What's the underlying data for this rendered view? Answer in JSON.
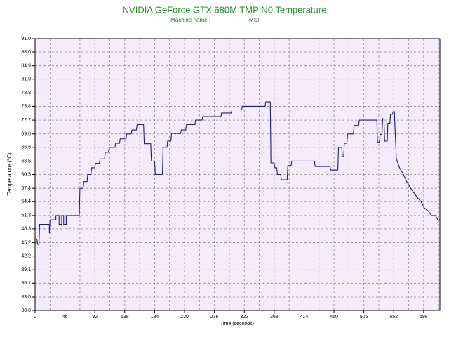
{
  "chart_data": {
    "type": "line",
    "title": "NVIDIA GeForce GTX 680M TMPIN0 Temperature",
    "machine_label": "Machine name :",
    "machine_value": "MSI",
    "xlabel": "Time (seconds)",
    "ylabel": "Temperature (°C)",
    "color": "#1c1c7a",
    "grid": true,
    "xlim": [
      0,
      623
    ],
    "ylim": [
      30,
      91
    ],
    "xticks": [
      0,
      46,
      92,
      138,
      184,
      230,
      276,
      322,
      368,
      414,
      460,
      506,
      552,
      598
    ],
    "xminorticks": [
      23,
      69,
      115,
      161,
      207,
      253,
      299,
      345,
      391,
      437,
      483,
      529,
      575,
      621
    ],
    "yticks": [
      {
        "value": 30,
        "label": "30.0"
      },
      {
        "value": 33,
        "label": "33.0"
      },
      36.1,
      39.1,
      42.2,
      45.2,
      48.3,
      51.3,
      54.4,
      57.4,
      60.5,
      63.5,
      66.6,
      69.6,
      72.7,
      75.8,
      78.8,
      81.9,
      84.9,
      {
        "value": 88,
        "label": "88.0"
      },
      {
        "value": 91,
        "label": "91.0"
      }
    ],
    "x": [
      0,
      3,
      4,
      6,
      7,
      22,
      22,
      23,
      32,
      32,
      37,
      37,
      41,
      41,
      44,
      44,
      48,
      48,
      68,
      69,
      74,
      75,
      80,
      81,
      86,
      87,
      92,
      93,
      99,
      100,
      107,
      108,
      113,
      114,
      123,
      124,
      130,
      131,
      140,
      141,
      148,
      149,
      156,
      157,
      167,
      168,
      178,
      179,
      184,
      185,
      196,
      197,
      203,
      204,
      209,
      210,
      224,
      225,
      232,
      233,
      246,
      247,
      257,
      258,
      286,
      287,
      302,
      303,
      318,
      319,
      354,
      355,
      362,
      363,
      368,
      369,
      372,
      373,
      378,
      379,
      388,
      389,
      394,
      395,
      430,
      431,
      454,
      455,
      466,
      467,
      472,
      473,
      475,
      476,
      480,
      481,
      490,
      491,
      498,
      499,
      526,
      527,
      530,
      531,
      534,
      535,
      537,
      538,
      542,
      543,
      546,
      547,
      550,
      551,
      553,
      554,
      556,
      561,
      567,
      572,
      578,
      583,
      588,
      594,
      599,
      605,
      610,
      616,
      620,
      623
    ],
    "values": [
      46.1,
      45.8,
      44.8,
      44.8,
      49.3,
      49.3,
      47.3,
      50.3,
      50.3,
      51.3,
      51.3,
      49.3,
      49.3,
      51.3,
      51.3,
      49.3,
      49.3,
      51.3,
      51.3,
      57.4,
      57.4,
      58.9,
      58.9,
      60.5,
      60.5,
      62.0,
      62.0,
      63.0,
      63.0,
      64.0,
      64.0,
      65.5,
      65.5,
      66.6,
      66.6,
      67.5,
      67.5,
      68.5,
      68.5,
      69.6,
      69.6,
      70.5,
      70.5,
      71.7,
      71.7,
      67.4,
      67.4,
      63.5,
      63.5,
      60.5,
      60.5,
      66.6,
      66.6,
      68.0,
      68.0,
      69.7,
      69.7,
      70.5,
      70.5,
      71.7,
      71.7,
      72.7,
      72.7,
      73.5,
      73.5,
      74.3,
      74.3,
      75.0,
      75.0,
      75.8,
      75.8,
      76.8,
      76.8,
      63.1,
      63.1,
      62.0,
      62.0,
      60.5,
      60.5,
      59.3,
      59.3,
      62.5,
      62.5,
      63.5,
      63.5,
      62.3,
      62.3,
      61.5,
      61.5,
      66.6,
      66.6,
      64.5,
      64.5,
      67.5,
      67.5,
      69.6,
      69.6,
      71.5,
      71.5,
      72.7,
      72.7,
      67.7,
      67.7,
      69.5,
      69.5,
      73.0,
      73.0,
      68.0,
      68.0,
      72.0,
      72.0,
      74.0,
      74.0,
      74.6,
      74.6,
      71.0,
      64.0,
      62.0,
      60.5,
      58.9,
      57.4,
      56.4,
      55.4,
      54.4,
      53.0,
      52.3,
      51.3,
      51.3,
      50.3,
      50.3
    ]
  }
}
